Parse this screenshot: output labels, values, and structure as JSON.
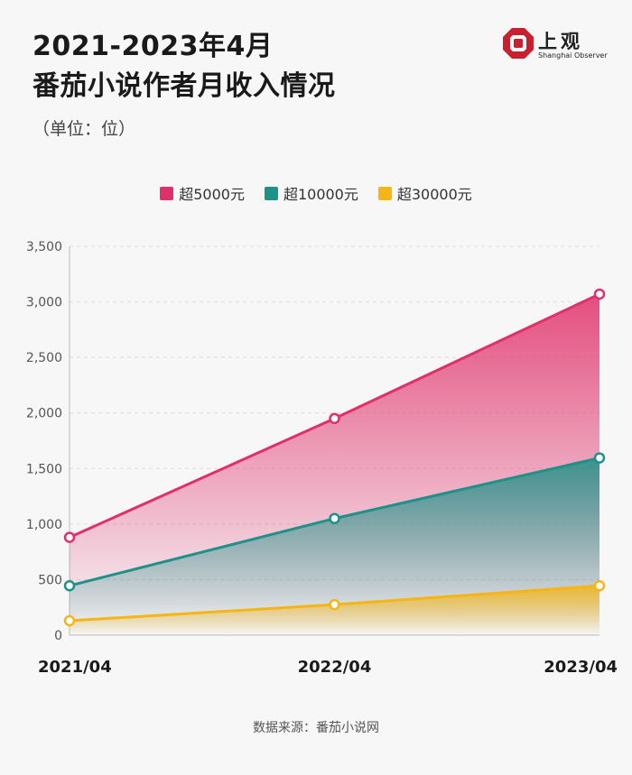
{
  "header": {
    "title_line1": "2021-2023年4月",
    "title_line2": "番茄小说作者月收入情况",
    "subtitle": "（单位：位）"
  },
  "logo": {
    "name": "上观",
    "english": "Shanghai Observer",
    "color": "#c8202f"
  },
  "source": "数据来源：番茄小说网",
  "chart_data": {
    "type": "area",
    "categories": [
      "2021/04",
      "2022/04",
      "2023/04"
    ],
    "series": [
      {
        "name": "超5000元",
        "values": [
          880,
          1950,
          3070
        ],
        "color": "#e0306a"
      },
      {
        "name": "超10000元",
        "values": [
          445,
          1050,
          1595
        ],
        "color": "#1e9188"
      },
      {
        "name": "超30000元",
        "values": [
          130,
          275,
          445
        ],
        "color": "#f5b516"
      }
    ],
    "ylim": [
      0,
      3500
    ],
    "yticks": [
      0,
      500,
      1000,
      1500,
      2000,
      2500,
      3000,
      3500
    ],
    "ytick_labels": [
      "0",
      "500",
      "1,000",
      "1,500",
      "2,000",
      "2,500",
      "3,000",
      "3,500"
    ],
    "grid": true,
    "legend_position": "top-center"
  }
}
